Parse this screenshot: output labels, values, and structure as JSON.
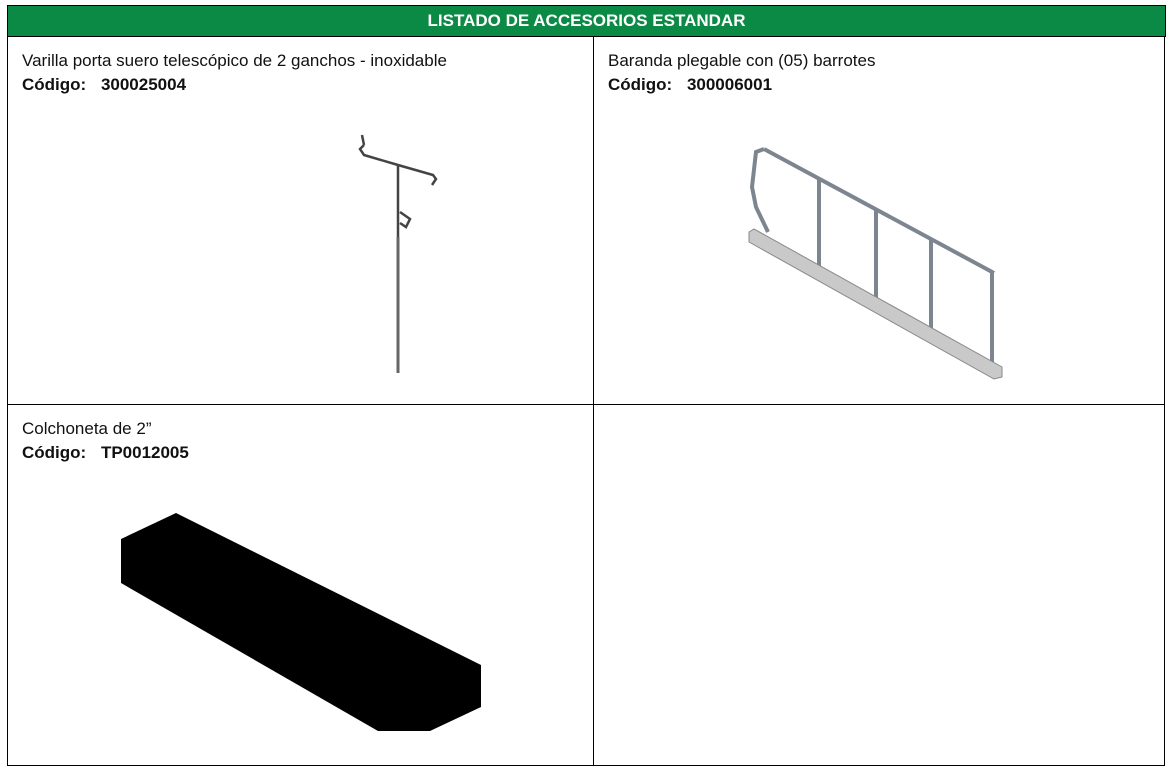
{
  "table": {
    "title": "LISTADO DE ACCESORIOS ESTANDAR",
    "rows": [
      [
        {
          "description": "Varilla porta suero telescópico de 2 ganchos - inoxidable",
          "code_label": "Código:",
          "code": "300025004"
        },
        {
          "description": "Baranda plegable con (05) barrotes",
          "code_label": "Código:",
          "code": "300006001"
        }
      ],
      [
        {
          "description": "Colchoneta de 2”",
          "code_label": "Código:",
          "code": "TP0012005"
        }
      ]
    ]
  }
}
